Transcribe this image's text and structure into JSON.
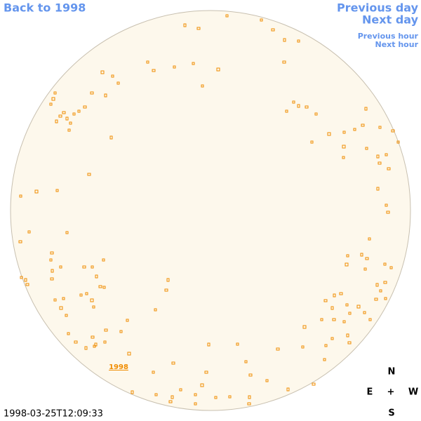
{
  "nav": {
    "back": "Back to 1998",
    "previous_day": "Previous day",
    "next_day": "Next day",
    "previous_hour": "Previous hour",
    "next_hour": "Next hour"
  },
  "disk_label": "1998",
  "compass": {
    "north": "N",
    "east": "E",
    "center": "+",
    "west": "W",
    "south": "S"
  },
  "timestamp": "1998-03-25T12:09:33"
}
